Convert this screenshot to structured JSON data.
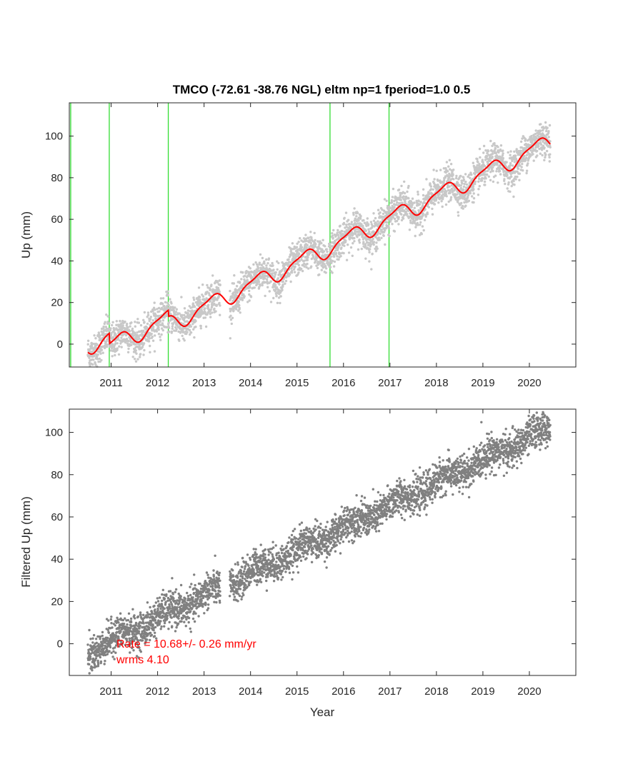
{
  "chart_data": [
    {
      "type": "scatter",
      "title": "TMCO (-72.61 -38.76 NGL) eltm np=1 fperiod=1.0 0.5",
      "ylabel": "Up (mm)",
      "xlabel": "",
      "xlim": [
        2010.1,
        2021.0
      ],
      "ylim": [
        -11,
        116
      ],
      "xticks": [
        2011,
        2012,
        2013,
        2014,
        2015,
        2016,
        2017,
        2018,
        2019,
        2020
      ],
      "yticks": [
        0,
        20,
        40,
        60,
        80,
        100
      ],
      "grid": false,
      "colors": {
        "points": "#c8c8c8",
        "model": "#ff0000",
        "breaks": "#33dd33"
      },
      "breaks": [
        2010.13,
        2010.96,
        2012.23,
        2015.71,
        2016.98
      ],
      "data_range": [
        2010.5,
        2020.45
      ],
      "gap": [
        2013.35,
        2013.55
      ],
      "trend": {
        "intercept": -1.0,
        "rate": 10.68,
        "t0": 2010.5
      },
      "offsets": [
        {
          "t": 2010.96,
          "dy": -5.0
        },
        {
          "t": 2012.23,
          "dy": -3.0
        }
      ],
      "seasonal": {
        "amp_annual": 3.8,
        "amp_semiannual": 1.2
      },
      "noise_mm": 4.1,
      "series": [
        {
          "kind": "scatter",
          "description_values": "daily Up positions (mm)"
        },
        {
          "kind": "line",
          "description_values": "trajectory model (mm)"
        }
      ]
    },
    {
      "type": "scatter",
      "title": "",
      "ylabel": "Filtered Up (mm)",
      "xlabel": "Year",
      "xlim": [
        2010.1,
        2021.0
      ],
      "ylim": [
        -15,
        111
      ],
      "xticks": [
        2011,
        2012,
        2013,
        2014,
        2015,
        2016,
        2017,
        2018,
        2019,
        2020
      ],
      "yticks": [
        0,
        20,
        40,
        60,
        80,
        100
      ],
      "grid": false,
      "colors": {
        "points": "#808080"
      },
      "data_range": [
        2010.5,
        2020.45
      ],
      "gap": [
        2013.35,
        2013.55
      ],
      "trend": {
        "intercept": -4.0,
        "rate": 10.68,
        "t0": 2010.5
      },
      "noise_mm": 4.1,
      "annotations": [
        "Rate = 10.68+/- 0.26 mm/yr",
        "wrms 4.10"
      ]
    }
  ]
}
